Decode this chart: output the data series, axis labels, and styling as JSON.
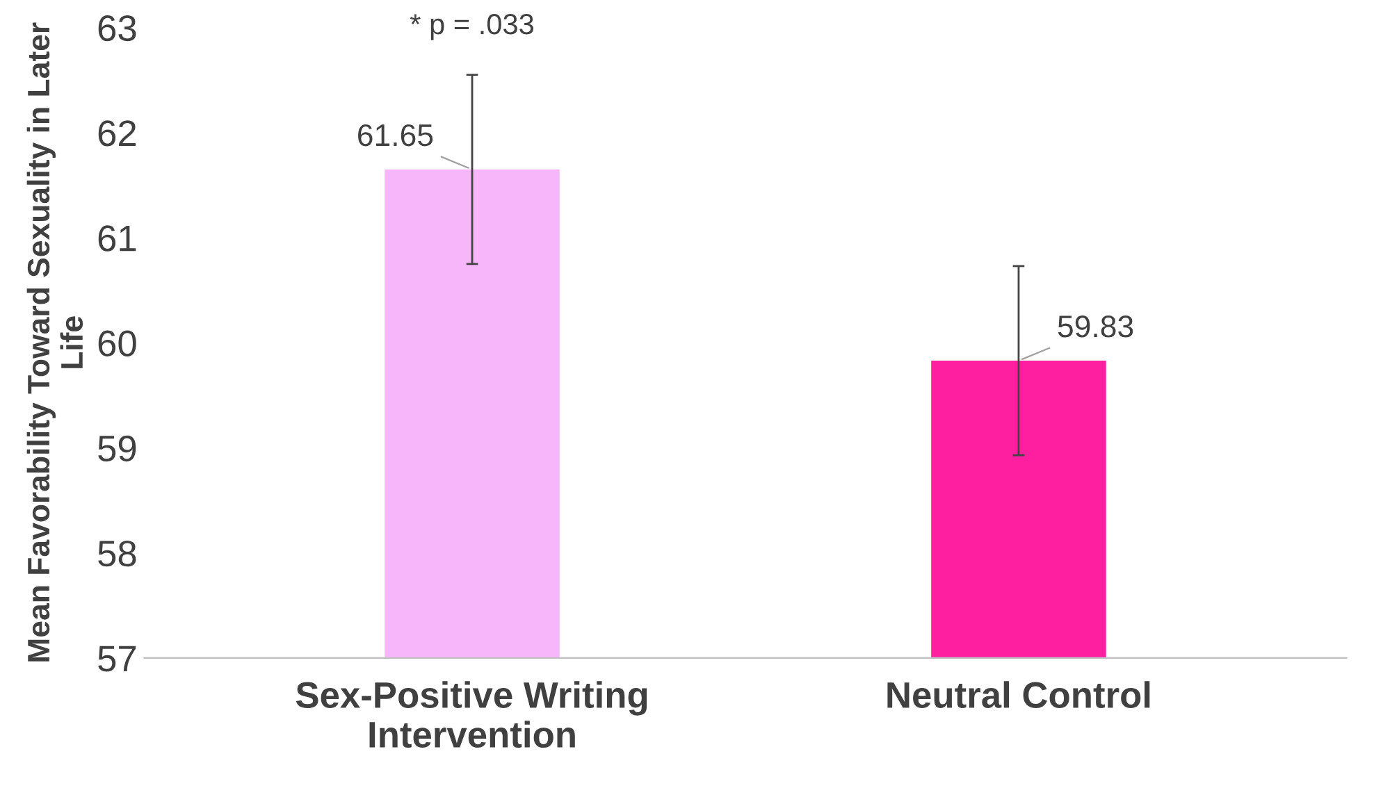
{
  "chart_data": {
    "type": "bar",
    "ylabel": "Mean Favorability Toward Sexuality in Later Life",
    "categories": [
      "Sex-Positive Writing Intervention",
      "Neutral Control"
    ],
    "values": [
      61.65,
      59.83
    ],
    "colors": [
      "#f8b6fa",
      "#fd1fa0"
    ],
    "errors": [
      0.9,
      0.9
    ],
    "ylim": [
      57,
      63
    ],
    "yticks": [
      57,
      58,
      59,
      60,
      61,
      62,
      63
    ],
    "data_labels": true,
    "grid": false,
    "annotations": [
      "* p = .033"
    ]
  }
}
